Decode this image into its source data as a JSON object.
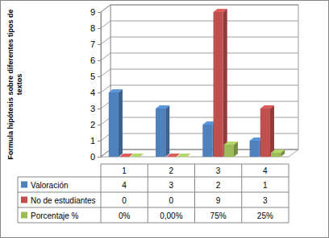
{
  "chart_data": {
    "type": "bar",
    "ylabel": "Formula hipótesis sobre diferentes tipos de textos",
    "categories": [
      "1",
      "2",
      "3",
      "4"
    ],
    "series": [
      {
        "name": "Valoración",
        "color": "#4F81BD",
        "values": [
          4,
          3,
          2,
          1
        ]
      },
      {
        "name": "No de estudiantes",
        "color": "#C0504D",
        "values": [
          0,
          0,
          9,
          3
        ]
      },
      {
        "name": "Porcentaje %",
        "color": "#9BBB59",
        "values": [
          0,
          0,
          0.75,
          0.25
        ],
        "value_labels": [
          "0%",
          "0,00%",
          "75%",
          "25%"
        ]
      }
    ],
    "ylim": [
      0,
      9
    ],
    "yticks": [
      0,
      1,
      2,
      3,
      4,
      5,
      6,
      7,
      8,
      9
    ],
    "grid": true
  }
}
